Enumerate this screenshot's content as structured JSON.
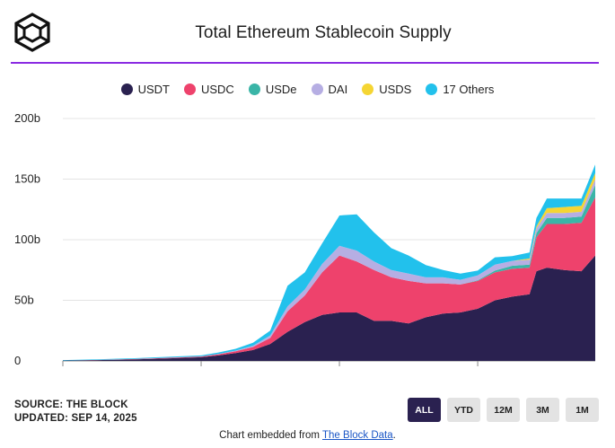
{
  "header": {
    "title": "Total Ethereum Stablecoin Supply"
  },
  "legend": [
    {
      "label": "USDT",
      "color": "#2a2150"
    },
    {
      "label": "USDC",
      "color": "#ee426c"
    },
    {
      "label": "USDe",
      "color": "#3ab5a7"
    },
    {
      "label": "DAI",
      "color": "#b6aee3"
    },
    {
      "label": "USDS",
      "color": "#f5d533"
    },
    {
      "label": "17 Others",
      "color": "#22c1ec"
    }
  ],
  "chart_data": {
    "type": "area",
    "stacked": true,
    "title": "Total Ethereum Stablecoin Supply",
    "xlabel": "",
    "ylabel": "",
    "x": [
      2018.0,
      2018.5,
      2019.0,
      2019.5,
      2020.0,
      2020.25,
      2020.5,
      2020.75,
      2021.0,
      2021.25,
      2021.5,
      2021.75,
      2022.0,
      2022.25,
      2022.5,
      2022.75,
      2023.0,
      2023.25,
      2023.5,
      2023.75,
      2024.0,
      2024.25,
      2024.5,
      2024.75,
      2024.85,
      2025.0,
      2025.25,
      2025.5,
      2025.7
    ],
    "series": [
      {
        "name": "USDT",
        "values": [
          0.3,
          0.7,
          1.2,
          2.0,
          3.0,
          4.5,
          6.5,
          9.0,
          14,
          24,
          32,
          38,
          40,
          40,
          33,
          33,
          31,
          36,
          39,
          40,
          43,
          50,
          53,
          55,
          74,
          77,
          75,
          74,
          87
        ]
      },
      {
        "name": "USDC",
        "values": [
          0,
          0.1,
          0.3,
          0.5,
          0.6,
          1.0,
          1.5,
          2.5,
          5,
          17,
          22,
          35,
          47,
          42,
          42,
          36,
          35,
          28,
          25,
          23,
          23,
          23,
          23,
          22,
          28,
          36,
          38,
          40,
          48
        ]
      },
      {
        "name": "USDe",
        "values": [
          0,
          0,
          0,
          0,
          0,
          0,
          0,
          0,
          0,
          0,
          0,
          0,
          0,
          0,
          0,
          0,
          0,
          0,
          0,
          0,
          0.5,
          1.5,
          2.5,
          2.5,
          3.5,
          5,
          5,
          5,
          10
        ]
      },
      {
        "name": "DAI",
        "values": [
          0,
          0,
          0.05,
          0.1,
          0.1,
          0.3,
          0.5,
          1.0,
          2,
          4,
          5,
          7,
          8,
          9,
          7,
          6,
          6,
          5,
          5,
          4,
          4,
          5,
          4,
          4,
          4,
          4,
          4,
          4,
          5
        ]
      },
      {
        "name": "USDS",
        "values": [
          0,
          0,
          0,
          0,
          0,
          0,
          0,
          0,
          0,
          0,
          0,
          0,
          0,
          0,
          0,
          0,
          0,
          0,
          0,
          0,
          0,
          0,
          0,
          1,
          1.5,
          4,
          5,
          5,
          5
        ]
      },
      {
        "name": "17 Others",
        "values": [
          0.4,
          0.5,
          0.6,
          0.7,
          0.8,
          1.2,
          1.5,
          2.5,
          4,
          17,
          14,
          17,
          25,
          30,
          24,
          18,
          15,
          10,
          6,
          5,
          4,
          6,
          4,
          5,
          7,
          8,
          7,
          6,
          7
        ]
      }
    ],
    "xticks": [
      2018,
      2020,
      2022,
      2024
    ],
    "ytick_labels": [
      "0",
      "50b",
      "100b",
      "150b",
      "200b"
    ],
    "yticks": [
      0,
      50,
      100,
      150,
      200
    ],
    "xlim": [
      2018,
      2025.7
    ],
    "ylim": [
      0,
      200
    ],
    "grid": true,
    "legend_position": "top"
  },
  "footer": {
    "source": "SOURCE: THE BLOCK",
    "updated": "UPDATED: SEP 14, 2025",
    "range_buttons": [
      "ALL",
      "YTD",
      "12M",
      "3M",
      "1M"
    ],
    "active_range": "ALL",
    "embed_prefix": "Chart embedded from",
    "embed_link": "The Block Data",
    "embed_suffix": "."
  }
}
